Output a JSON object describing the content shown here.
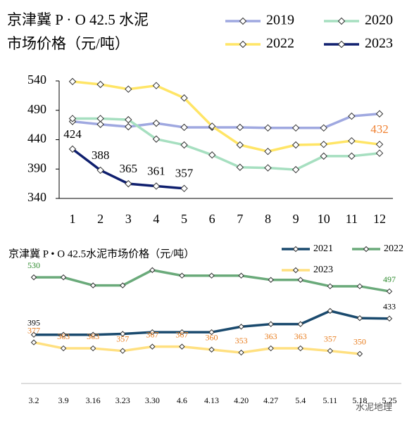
{
  "chart_data": [
    {
      "type": "line",
      "title": "京津冀 P · O 42.5 水泥",
      "subtitle": "市场价格（元/吨）",
      "categories": [
        "1",
        "2",
        "3",
        "4",
        "5",
        "6",
        "7",
        "8",
        "9",
        "10",
        "11",
        "12"
      ],
      "ylim": [
        340,
        540
      ],
      "yticks": [
        340,
        390,
        440,
        490,
        540
      ],
      "series": [
        {
          "name": "2019",
          "color": "#9fa8e0",
          "values": [
            471,
            466,
            462,
            468,
            461,
            461,
            461,
            460,
            460,
            460,
            480,
            484
          ]
        },
        {
          "name": "2020",
          "color": "#a6dfc0",
          "values": [
            476,
            476,
            474,
            441,
            431,
            414,
            393,
            392,
            389,
            412,
            412,
            417
          ]
        },
        {
          "name": "2022",
          "color": "#ffe566",
          "label_color": "#f08030",
          "values": [
            539,
            534,
            526,
            532,
            511,
            463,
            431,
            420,
            431,
            432,
            438,
            432
          ],
          "value_labels": [
            null,
            null,
            null,
            null,
            null,
            null,
            null,
            null,
            null,
            null,
            null,
            "432"
          ]
        },
        {
          "name": "2023",
          "color": "#0f1f6e",
          "label_color": "#000000",
          "values": [
            424,
            388,
            365,
            361,
            357,
            null,
            null,
            null,
            null,
            null,
            null,
            null
          ],
          "value_labels": [
            "424",
            "388",
            "365",
            "361",
            "357",
            null,
            null,
            null,
            null,
            null,
            null,
            null
          ]
        }
      ]
    },
    {
      "type": "line",
      "title": "京津冀 P • O 42.5水泥市场价格（元/吨）",
      "categories": [
        "3.2",
        "3.9",
        "3.16",
        "3.23",
        "3.30",
        "4.6",
        "4.13",
        "4.20",
        "4.27",
        "5.4",
        "5.11",
        "5.18",
        "5.25"
      ],
      "ylim": [
        330,
        560
      ],
      "series": [
        {
          "name": "2021",
          "color": "#1a4a6e",
          "label_color": "#000000",
          "values": [
            395,
            395,
            395,
            397,
            401,
            401,
            401,
            414,
            420,
            420,
            451,
            434,
            433
          ],
          "value_labels": [
            "395",
            null,
            null,
            null,
            null,
            null,
            null,
            null,
            null,
            null,
            null,
            null,
            "433"
          ]
        },
        {
          "name": "2022",
          "color": "#6aaa7a",
          "label_color": "#2e8b2e",
          "values": [
            530,
            530,
            511,
            511,
            547,
            534,
            534,
            534,
            524,
            524,
            509,
            509,
            497
          ],
          "value_labels": [
            "530",
            null,
            null,
            null,
            null,
            null,
            null,
            null,
            null,
            null,
            null,
            null,
            "497"
          ]
        },
        {
          "name": "2023",
          "color": "#ffe080",
          "label_color": "#e87d1e",
          "values": [
            377,
            363,
            363,
            357,
            367,
            367,
            360,
            353,
            363,
            363,
            357,
            350,
            null
          ],
          "value_labels": [
            "377",
            "363",
            "363",
            "357",
            "367",
            "367",
            "360",
            "353",
            "363",
            "363",
            "357",
            "350",
            null
          ]
        }
      ]
    }
  ],
  "watermark": "水泥地理"
}
